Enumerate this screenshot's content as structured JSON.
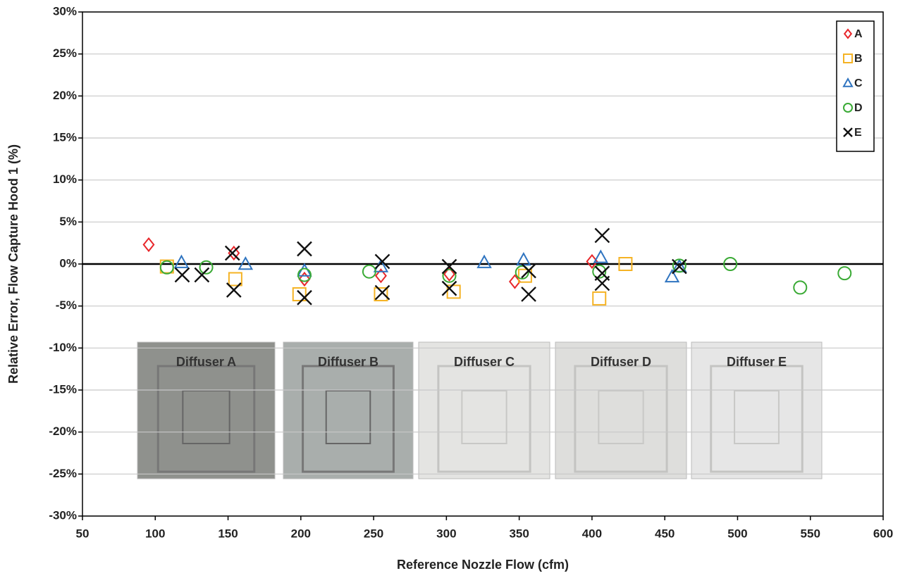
{
  "chart_data": {
    "type": "scatter",
    "x_label": "Reference Nozzle Flow (cfm)",
    "y_label": "Relative Error, Flow Capture Hood 1 (%)",
    "xlim": [
      50,
      600
    ],
    "xticks": [
      50,
      100,
      150,
      200,
      250,
      300,
      350,
      400,
      450,
      500,
      550,
      600
    ],
    "ylim": [
      -30,
      30
    ],
    "yticks": [
      {
        "value": -30,
        "label": "-30%"
      },
      {
        "value": -25,
        "label": "-25%"
      },
      {
        "value": -20,
        "label": "-20%"
      },
      {
        "value": -15,
        "label": "-15%"
      },
      {
        "value": -10,
        "label": "-10%"
      },
      {
        "value": -5,
        "label": "-5%"
      },
      {
        "value": 0,
        "label": "0%"
      },
      {
        "value": 5,
        "label": "5%"
      },
      {
        "value": 10,
        "label": "10%"
      },
      {
        "value": 15,
        "label": "15%"
      },
      {
        "value": 20,
        "label": "20%"
      },
      {
        "value": 25,
        "label": "25%"
      },
      {
        "value": 30,
        "label": "30%"
      }
    ],
    "grid": true,
    "legend": "top-right",
    "insets": [
      "Diffuser A",
      "Diffuser B",
      "Diffuser C",
      "Diffuser D",
      "Diffuser E"
    ],
    "series": [
      {
        "name": "A",
        "color": "#e8262a",
        "marker": "diamond",
        "x": [
          95.5,
          154,
          202.5,
          255,
          302,
          347,
          400
        ],
        "values": [
          2.3,
          1.3,
          -1.8,
          -1.4,
          -1.2,
          -2.1,
          0.3
        ]
      },
      {
        "name": "B",
        "color": "#f5b324",
        "marker": "square",
        "x": [
          108,
          155,
          199,
          255,
          305,
          354,
          405,
          423
        ],
        "values": [
          -0.3,
          -1.8,
          -3.6,
          -3.6,
          -3.3,
          -1.4,
          -4.1,
          0
        ]
      },
      {
        "name": "C",
        "color": "#2f74c0",
        "marker": "triangle",
        "x": [
          118,
          162,
          202.5,
          255,
          326,
          353,
          406,
          455,
          460
        ],
        "values": [
          0.2,
          0,
          -0.8,
          -0.3,
          0.2,
          0.5,
          0.8,
          -1.5,
          -0.3
        ]
      },
      {
        "name": "D",
        "color": "#3aaa35",
        "marker": "circle",
        "x": [
          108,
          135,
          202.5,
          247,
          302,
          352,
          405,
          460,
          495,
          543,
          573.5
        ],
        "values": [
          -0.4,
          -0.4,
          -1.3,
          -0.9,
          -1.4,
          -1,
          -0.9,
          -0.2,
          0,
          -2.8,
          -1.1
        ]
      },
      {
        "name": "E",
        "color": "#111111",
        "marker": "x",
        "x": [
          118.5,
          132,
          153,
          154,
          202.5,
          202.5,
          256,
          256,
          302,
          302,
          356.5,
          356.5,
          407,
          407,
          407,
          460
        ],
        "values": [
          -1.3,
          -1.3,
          1.3,
          -3.1,
          1.8,
          -4.0,
          0.3,
          -3.4,
          -0.3,
          -2.9,
          -0.8,
          -3.6,
          3.4,
          -2.3,
          -1.1,
          -0.3
        ]
      }
    ]
  }
}
